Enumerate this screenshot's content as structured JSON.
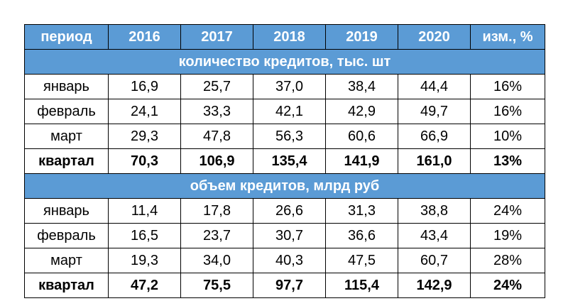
{
  "colors": {
    "header_bg": "#5b9bd5",
    "header_text": "#ffffff",
    "border": "#000000"
  },
  "header": [
    "период",
    "2016",
    "2017",
    "2018",
    "2019",
    "2020",
    "изм., %"
  ],
  "sections": [
    {
      "title": "количество кредитов, тыс. шт",
      "rows": [
        [
          "январь",
          "16,9",
          "25,7",
          "37,0",
          "38,4",
          "44,4",
          "16%"
        ],
        [
          "февраль",
          "24,1",
          "33,3",
          "42,1",
          "42,9",
          "49,7",
          "16%"
        ],
        [
          "март",
          "29,3",
          "47,8",
          "56,3",
          "60,6",
          "66,9",
          "10%"
        ],
        [
          "квартал",
          "70,3",
          "106,9",
          "135,4",
          "141,9",
          "161,0",
          "13%"
        ]
      ]
    },
    {
      "title": "объем кредитов, млрд руб",
      "rows": [
        [
          "январь",
          "11,4",
          "17,8",
          "26,6",
          "31,3",
          "38,8",
          "24%"
        ],
        [
          "февраль",
          "16,5",
          "23,7",
          "30,7",
          "36,6",
          "43,4",
          "19%"
        ],
        [
          "март",
          "19,3",
          "34,0",
          "40,3",
          "47,5",
          "60,7",
          "28%"
        ],
        [
          "квартал",
          "47,2",
          "75,5",
          "97,7",
          "115,4",
          "142,9",
          "24%"
        ]
      ]
    }
  ]
}
